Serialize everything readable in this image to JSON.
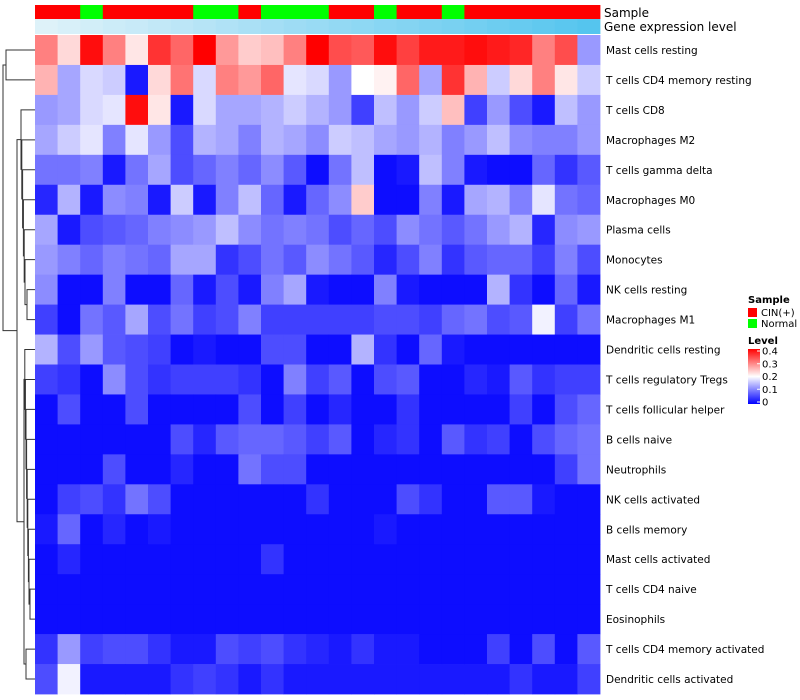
{
  "chart_data": {
    "type": "heatmap",
    "annotation_tracks": {
      "sample_label": "Sample",
      "gene_label": "Gene expression level"
    },
    "legend": {
      "sample_title": "Sample",
      "sample_entries": [
        {
          "label": "CIN(+)",
          "color": "#ff0000"
        },
        {
          "label": "Normal",
          "color": "#00ff00"
        }
      ],
      "level_title": "Level",
      "level_ticks": [
        "0.4",
        "0.3",
        "0.2",
        "0.1",
        "0"
      ],
      "level_range": [
        0,
        0.4
      ],
      "colors": {
        "low": "#0000ff",
        "mid": "#ffffff",
        "high": "#ff0000"
      }
    },
    "samples": [
      "CIN(+)",
      "CIN(+)",
      "Normal",
      "CIN(+)",
      "CIN(+)",
      "CIN(+)",
      "CIN(+)",
      "Normal",
      "Normal",
      "CIN(+)",
      "Normal",
      "Normal",
      "Normal",
      "CIN(+)",
      "CIN(+)",
      "Normal",
      "CIN(+)",
      "CIN(+)",
      "Normal",
      "CIN(+)",
      "CIN(+)",
      "CIN(+)",
      "CIN(+)",
      "CIN(+)",
      "CIN(+)"
    ],
    "gene_expression": [
      0.05,
      0.09,
      0.13,
      0.17,
      0.2,
      0.24,
      0.28,
      0.32,
      0.36,
      0.4,
      0.44,
      0.48,
      0.51,
      0.55,
      0.58,
      0.62,
      0.65,
      0.69,
      0.72,
      0.76,
      0.8,
      0.84,
      0.88,
      0.92,
      0.96
    ],
    "gene_expression_colors": {
      "low": "#e6f4fa",
      "high": "#4fc3ee"
    },
    "rows": [
      {
        "label": "Mast cells resting",
        "values": [
          0.3,
          0.23,
          0.39,
          0.3,
          0.22,
          0.36,
          0.32,
          0.4,
          0.28,
          0.24,
          0.25,
          0.3,
          0.4,
          0.34,
          0.33,
          0.39,
          0.35,
          0.38,
          0.38,
          0.39,
          0.38,
          0.37,
          0.3,
          0.34,
          0.12
        ]
      },
      {
        "label": "T cells CD4 memory resting",
        "values": [
          0.26,
          0.13,
          0.17,
          0.16,
          0.02,
          0.23,
          0.31,
          0.17,
          0.3,
          0.28,
          0.32,
          0.18,
          0.17,
          0.12,
          0.2,
          0.21,
          0.32,
          0.13,
          0.36,
          0.26,
          0.16,
          0.23,
          0.3,
          0.22,
          0.16
        ]
      },
      {
        "label": "T cells CD8",
        "values": [
          0.12,
          0.13,
          0.17,
          0.18,
          0.39,
          0.22,
          0.02,
          0.17,
          0.13,
          0.13,
          0.14,
          0.16,
          0.14,
          0.12,
          0.05,
          0.15,
          0.12,
          0.16,
          0.25,
          0.05,
          0.12,
          0.06,
          0.02,
          0.15,
          0.12
        ]
      },
      {
        "label": "Macrophages M2",
        "values": [
          0.13,
          0.16,
          0.18,
          0.1,
          0.18,
          0.12,
          0.06,
          0.14,
          0.13,
          0.1,
          0.14,
          0.13,
          0.11,
          0.16,
          0.15,
          0.13,
          0.12,
          0.14,
          0.1,
          0.12,
          0.15,
          0.11,
          0.1,
          0.1,
          0.12
        ]
      },
      {
        "label": "T cells gamma delta",
        "values": [
          0.09,
          0.09,
          0.1,
          0.02,
          0.09,
          0.13,
          0.06,
          0.08,
          0.1,
          0.08,
          0.11,
          0.07,
          0.01,
          0.09,
          0.15,
          0.01,
          0.02,
          0.15,
          0.1,
          0.02,
          0.01,
          0.01,
          0.08,
          0.04,
          0.07
        ]
      },
      {
        "label": "Macrophages M0",
        "values": [
          0.03,
          0.14,
          0.02,
          0.11,
          0.1,
          0.02,
          0.16,
          0.02,
          0.1,
          0.15,
          0.08,
          0.02,
          0.08,
          0.11,
          0.24,
          0.01,
          0.01,
          0.1,
          0.02,
          0.13,
          0.14,
          0.1,
          0.18,
          0.09,
          0.08
        ]
      },
      {
        "label": "Plasma cells",
        "values": [
          0.13,
          0.02,
          0.06,
          0.07,
          0.08,
          0.1,
          0.11,
          0.12,
          0.15,
          0.11,
          0.09,
          0.1,
          0.09,
          0.06,
          0.08,
          0.06,
          0.11,
          0.09,
          0.07,
          0.09,
          0.12,
          0.14,
          0.03,
          0.11,
          0.12
        ]
      },
      {
        "label": "Monocytes",
        "values": [
          0.12,
          0.1,
          0.08,
          0.1,
          0.09,
          0.08,
          0.13,
          0.13,
          0.04,
          0.06,
          0.09,
          0.07,
          0.11,
          0.09,
          0.07,
          0.03,
          0.06,
          0.1,
          0.04,
          0.07,
          0.08,
          0.08,
          0.05,
          0.1,
          0.06
        ]
      },
      {
        "label": "NK cells resting",
        "values": [
          0.11,
          0.01,
          0.01,
          0.1,
          0.01,
          0.01,
          0.08,
          0.02,
          0.06,
          0.02,
          0.1,
          0.13,
          0.02,
          0.01,
          0.01,
          0.1,
          0.02,
          0.01,
          0.01,
          0.01,
          0.14,
          0.04,
          0.01,
          0.08,
          0.02
        ]
      },
      {
        "label": "Macrophages M1",
        "values": [
          0.05,
          0.01,
          0.09,
          0.07,
          0.13,
          0.06,
          0.09,
          0.05,
          0.06,
          0.1,
          0.05,
          0.05,
          0.05,
          0.05,
          0.05,
          0.06,
          0.06,
          0.05,
          0.08,
          0.09,
          0.06,
          0.07,
          0.19,
          0.05,
          0.09
        ]
      },
      {
        "label": "Dendritic cells resting",
        "values": [
          0.14,
          0.06,
          0.12,
          0.07,
          0.06,
          0.05,
          0.01,
          0.02,
          0.01,
          0.01,
          0.06,
          0.06,
          0.01,
          0.01,
          0.14,
          0.04,
          0.01,
          0.08,
          0.02,
          0.01,
          0.01,
          0.01,
          0.01,
          0.01,
          0.01
        ]
      },
      {
        "label": "T cells regulatory  Tregs",
        "values": [
          0.05,
          0.04,
          0.01,
          0.11,
          0.06,
          0.04,
          0.05,
          0.05,
          0.05,
          0.04,
          0.01,
          0.1,
          0.05,
          0.07,
          0.01,
          0.06,
          0.07,
          0.01,
          0.01,
          0.03,
          0.02,
          0.07,
          0.04,
          0.05,
          0.05
        ]
      },
      {
        "label": "T cells follicular helper",
        "values": [
          0.01,
          0.06,
          0.01,
          0.01,
          0.06,
          0.01,
          0.01,
          0.01,
          0.01,
          0.06,
          0.01,
          0.05,
          0.01,
          0.03,
          0.01,
          0.01,
          0.04,
          0.01,
          0.01,
          0.01,
          0.01,
          0.05,
          0.01,
          0.06,
          0.08
        ]
      },
      {
        "label": "B cells naive",
        "values": [
          0.01,
          0.01,
          0.01,
          0.01,
          0.01,
          0.01,
          0.06,
          0.03,
          0.07,
          0.08,
          0.08,
          0.07,
          0.05,
          0.07,
          0.01,
          0.03,
          0.04,
          0.01,
          0.07,
          0.04,
          0.05,
          0.01,
          0.06,
          0.08,
          0.09
        ]
      },
      {
        "label": "Neutrophils",
        "values": [
          0.01,
          0.01,
          0.01,
          0.06,
          0.01,
          0.01,
          0.03,
          0.01,
          0.01,
          0.09,
          0.06,
          0.06,
          0.01,
          0.01,
          0.01,
          0.01,
          0.01,
          0.01,
          0.01,
          0.01,
          0.01,
          0.01,
          0.01,
          0.05,
          0.09
        ]
      },
      {
        "label": "NK cells activated",
        "values": [
          0.01,
          0.05,
          0.06,
          0.04,
          0.09,
          0.06,
          0.01,
          0.01,
          0.01,
          0.01,
          0.01,
          0.01,
          0.04,
          0.01,
          0.01,
          0.01,
          0.06,
          0.04,
          0.01,
          0.01,
          0.07,
          0.07,
          0.02,
          0.01,
          0.01
        ]
      },
      {
        "label": "B cells memory",
        "values": [
          0.02,
          0.08,
          0.01,
          0.03,
          0.01,
          0.02,
          0.01,
          0.01,
          0.01,
          0.01,
          0.01,
          0.01,
          0.01,
          0.01,
          0.01,
          0.02,
          0.01,
          0.01,
          0.01,
          0.01,
          0.01,
          0.01,
          0.01,
          0.01,
          0.01
        ]
      },
      {
        "label": "Mast cells activated",
        "values": [
          0.01,
          0.03,
          0.01,
          0.01,
          0.01,
          0.01,
          0.01,
          0.01,
          0.01,
          0.01,
          0.04,
          0.01,
          0.01,
          0.01,
          0.01,
          0.01,
          0.01,
          0.01,
          0.01,
          0.01,
          0.01,
          0.01,
          0.01,
          0.01,
          0.01
        ]
      },
      {
        "label": "T cells CD4 naive",
        "values": [
          0.01,
          0.01,
          0.01,
          0.01,
          0.01,
          0.01,
          0.01,
          0.01,
          0.01,
          0.01,
          0.01,
          0.01,
          0.01,
          0.01,
          0.01,
          0.01,
          0.01,
          0.01,
          0.01,
          0.01,
          0.01,
          0.01,
          0.01,
          0.01,
          0.01
        ]
      },
      {
        "label": "Eosinophils",
        "values": [
          0.01,
          0.01,
          0.01,
          0.01,
          0.01,
          0.01,
          0.01,
          0.01,
          0.01,
          0.01,
          0.01,
          0.01,
          0.01,
          0.01,
          0.01,
          0.01,
          0.01,
          0.01,
          0.01,
          0.01,
          0.01,
          0.01,
          0.01,
          0.01,
          0.01
        ]
      },
      {
        "label": "T cells CD4 memory activated",
        "values": [
          0.04,
          0.12,
          0.05,
          0.06,
          0.06,
          0.04,
          0.02,
          0.02,
          0.06,
          0.05,
          0.06,
          0.04,
          0.03,
          0.02,
          0.04,
          0.02,
          0.02,
          0.01,
          0.01,
          0.01,
          0.05,
          0.01,
          0.06,
          0.01,
          0.07
        ]
      },
      {
        "label": "Dendritic cells activated",
        "values": [
          0.06,
          0.19,
          0.02,
          0.02,
          0.02,
          0.02,
          0.04,
          0.05,
          0.04,
          0.02,
          0.04,
          0.02,
          0.02,
          0.02,
          0.02,
          0.02,
          0.02,
          0.02,
          0.02,
          0.02,
          0.02,
          0.04,
          0.02,
          0.02,
          0.05
        ]
      }
    ]
  }
}
